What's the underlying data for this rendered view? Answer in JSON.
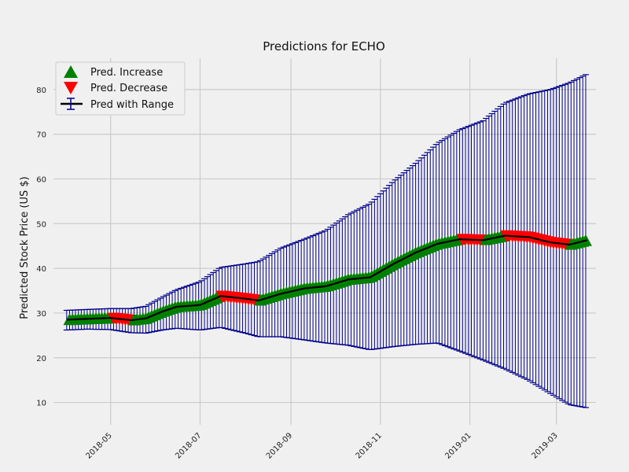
{
  "chart_data": {
    "type": "line",
    "title": "Predictions for ECHO",
    "xlabel": "",
    "ylabel": "Predicted Stock Price (US $)",
    "x_range": [
      "2018-03-23",
      "2019-03-28"
    ],
    "ylim": [
      5,
      87
    ],
    "grid": true,
    "legend_position": "top-left",
    "x_ticks": [
      {
        "date": "2018-05-01",
        "label": "2018-05"
      },
      {
        "date": "2018-07-01",
        "label": "2018-07"
      },
      {
        "date": "2018-09-01",
        "label": "2018-09"
      },
      {
        "date": "2018-11-01",
        "label": "2018-11"
      },
      {
        "date": "2019-01-01",
        "label": "2019-01"
      },
      {
        "date": "2019-03-01",
        "label": "2019-03"
      }
    ],
    "y_ticks": [
      10,
      20,
      30,
      40,
      50,
      60,
      70,
      80
    ],
    "legend": [
      {
        "label": "Pred. Increase",
        "marker": "triangle-up",
        "color": "#008000"
      },
      {
        "label": "Pred. Decrease",
        "marker": "triangle-down",
        "color": "#ff0000"
      },
      {
        "label": "Pred with Range",
        "marker": "errorbar-line",
        "color": "#000000"
      }
    ],
    "colors": {
      "increase": "#008000",
      "decrease": "#ff0000",
      "line": "#000000",
      "range": "#00008b",
      "grid": "#cbcbcb",
      "background": "#f0f0f0"
    },
    "series": [
      {
        "name": "Pred with Range",
        "points": [
          {
            "date": "2018-04-01",
            "yhat": 28.5,
            "lower": 26.2,
            "upper": 30.6
          },
          {
            "date": "2018-04-15",
            "yhat": 28.7,
            "lower": 26.4,
            "upper": 30.8
          },
          {
            "date": "2018-05-01",
            "yhat": 28.9,
            "lower": 26.3,
            "upper": 31.0
          },
          {
            "date": "2018-05-15",
            "yhat": 28.4,
            "lower": 25.6,
            "upper": 31.0
          },
          {
            "date": "2018-05-25",
            "yhat": 28.8,
            "lower": 25.5,
            "upper": 31.5
          },
          {
            "date": "2018-06-05",
            "yhat": 30.3,
            "lower": 26.2,
            "upper": 33.5
          },
          {
            "date": "2018-06-15",
            "yhat": 31.4,
            "lower": 26.6,
            "upper": 35.2
          },
          {
            "date": "2018-07-01",
            "yhat": 31.8,
            "lower": 26.2,
            "upper": 37.0
          },
          {
            "date": "2018-07-15",
            "yhat": 33.8,
            "lower": 26.8,
            "upper": 40.2
          },
          {
            "date": "2018-08-01",
            "yhat": 33.2,
            "lower": 25.5,
            "upper": 41.0
          },
          {
            "date": "2018-08-10",
            "yhat": 32.8,
            "lower": 24.7,
            "upper": 41.5
          },
          {
            "date": "2018-08-25",
            "yhat": 34.3,
            "lower": 24.7,
            "upper": 44.5
          },
          {
            "date": "2018-09-10",
            "yhat": 35.5,
            "lower": 24.0,
            "upper": 46.5
          },
          {
            "date": "2018-09-25",
            "yhat": 36.0,
            "lower": 23.3,
            "upper": 48.5
          },
          {
            "date": "2018-10-10",
            "yhat": 37.5,
            "lower": 22.8,
            "upper": 52.0
          },
          {
            "date": "2018-10-25",
            "yhat": 38.0,
            "lower": 21.8,
            "upper": 54.5
          },
          {
            "date": "2018-11-10",
            "yhat": 41.0,
            "lower": 22.5,
            "upper": 59.5
          },
          {
            "date": "2018-11-25",
            "yhat": 43.5,
            "lower": 23.0,
            "upper": 63.5
          },
          {
            "date": "2018-12-10",
            "yhat": 45.5,
            "lower": 23.3,
            "upper": 68.0
          },
          {
            "date": "2018-12-25",
            "yhat": 46.5,
            "lower": 21.5,
            "upper": 71.0
          },
          {
            "date": "2019-01-10",
            "yhat": 46.3,
            "lower": 19.5,
            "upper": 73.0
          },
          {
            "date": "2019-01-25",
            "yhat": 47.3,
            "lower": 17.5,
            "upper": 77.0
          },
          {
            "date": "2019-02-10",
            "yhat": 47.0,
            "lower": 15.0,
            "upper": 79.0
          },
          {
            "date": "2019-02-25",
            "yhat": 45.8,
            "lower": 12.0,
            "upper": 80.0
          },
          {
            "date": "2019-03-10",
            "yhat": 45.3,
            "lower": 9.5,
            "upper": 81.5
          },
          {
            "date": "2019-03-22",
            "yhat": 46.3,
            "lower": 8.8,
            "upper": 83.5
          }
        ]
      }
    ]
  }
}
